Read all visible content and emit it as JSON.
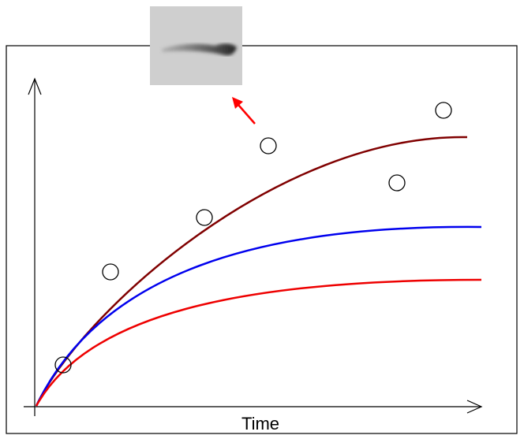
{
  "x_axis_label": "Time"
}
